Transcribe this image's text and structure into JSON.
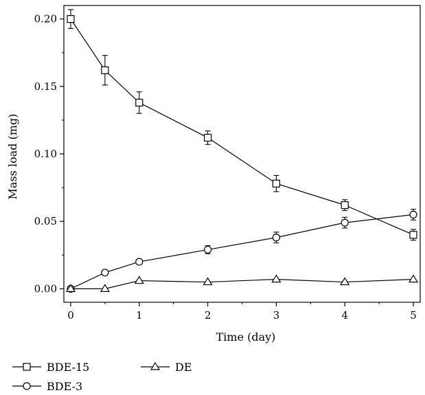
{
  "chart_data": {
    "type": "line",
    "title": "",
    "xlabel": "Time (day)",
    "ylabel": "Mass load (mg)",
    "xlim": [
      -0.1,
      5.1
    ],
    "ylim": [
      -0.01,
      0.21
    ],
    "x_ticks": [
      0,
      1,
      2,
      3,
      4,
      5
    ],
    "x_tick_labels": [
      "0",
      "1",
      "2",
      "3",
      "4",
      "5"
    ],
    "y_ticks": [
      0.0,
      0.05,
      0.1,
      0.15,
      0.2
    ],
    "y_tick_labels": [
      "0.00",
      "0.05",
      "0.10",
      "0.15",
      "0.20"
    ],
    "grid": false,
    "legend_position": "bottom-left",
    "series": [
      {
        "name": "BDE-15",
        "marker": "square",
        "x": [
          0,
          0.5,
          1,
          2,
          3,
          4,
          5
        ],
        "y": [
          0.2,
          0.162,
          0.138,
          0.112,
          0.078,
          0.062,
          0.04
        ],
        "error": [
          0.007,
          0.011,
          0.008,
          0.005,
          0.006,
          0.004,
          0.004
        ]
      },
      {
        "name": "BDE-3",
        "marker": "circle",
        "x": [
          0,
          0.5,
          1,
          2,
          3,
          4,
          5
        ],
        "y": [
          0.0,
          0.012,
          0.02,
          0.029,
          0.038,
          0.049,
          0.055
        ],
        "error": [
          0.0,
          0.001,
          0.001,
          0.003,
          0.004,
          0.004,
          0.004
        ]
      },
      {
        "name": "DE",
        "marker": "triangle",
        "x": [
          0,
          0.5,
          1,
          2,
          3,
          4,
          5
        ],
        "y": [
          0.0,
          0.0,
          0.006,
          0.005,
          0.007,
          0.005,
          0.007
        ],
        "error": [
          0.0,
          0.0,
          0.0,
          0.0,
          0.0,
          0.0,
          0.0
        ]
      }
    ]
  }
}
